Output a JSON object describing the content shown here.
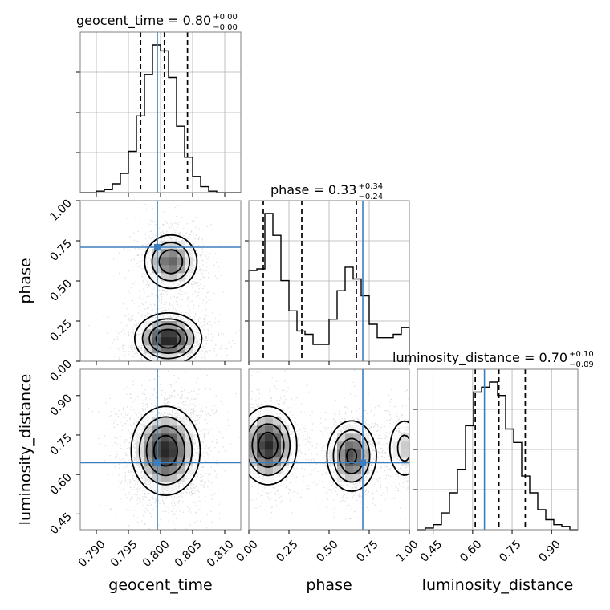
{
  "chart_data": {
    "type": "corner",
    "parameters": [
      {
        "name": "geocent_time",
        "axis_label": "geocent_time",
        "range": [
          0.7875,
          0.8125
        ],
        "ticks": [
          0.79,
          0.795,
          0.8,
          0.805,
          0.81
        ],
        "tick_labels": [
          "0.790",
          "0.795",
          "0.800",
          "0.805",
          "0.810"
        ],
        "truth": 0.7995
      },
      {
        "name": "phase",
        "axis_label": "phase",
        "range": [
          0.0,
          1.0
        ],
        "ticks": [
          0.0,
          0.25,
          0.5,
          0.75,
          1.0
        ],
        "tick_labels": [
          "0.00",
          "0.25",
          "0.50",
          "0.75",
          "1.00"
        ],
        "truth": 0.71
      },
      {
        "name": "luminosity_distance",
        "axis_label": "luminosity_distance",
        "range": [
          0.39,
          1.0
        ],
        "ticks": [
          0.45,
          0.6,
          0.75,
          0.9
        ],
        "tick_labels": [
          "0.45",
          "0.60",
          "0.75",
          "0.90"
        ],
        "truth": 0.645
      }
    ],
    "diagonal_titles": [
      {
        "label": "geocent_time = 0.80",
        "plus": "+0.00",
        "minus": "−0.00"
      },
      {
        "label": "phase = 0.33",
        "plus": "+0.34",
        "minus": "−0.24"
      },
      {
        "label": "luminosity_distance = 0.70",
        "plus": "+0.10",
        "minus": "−0.09"
      }
    ],
    "histograms": [
      {
        "param": "geocent_time",
        "quantile_lines": [
          0.7969,
          0.8006,
          0.8042
        ],
        "counts": [
          0,
          0,
          1,
          2,
          6,
          13,
          28,
          52,
          80,
          100,
          96,
          78,
          45,
          24,
          11,
          4,
          1,
          0,
          0,
          0
        ]
      },
      {
        "param": "phase",
        "quantile_lines": [
          0.09,
          0.33,
          0.67
        ],
        "counts": [
          54,
          55,
          88,
          75,
          48,
          30,
          18,
          16,
          10,
          10,
          25,
          42,
          56,
          49,
          39,
          22,
          14,
          14,
          16,
          20
        ]
      },
      {
        "param": "luminosity_distance",
        "quantile_lines": [
          0.61,
          0.7,
          0.8
        ],
        "counts": [
          0,
          1,
          3,
          10,
          22,
          36,
          62,
          82,
          85,
          88,
          80,
          60,
          52,
          32,
          22,
          12,
          6,
          3,
          2,
          0
        ]
      }
    ],
    "densities": [
      {
        "x": "geocent_time",
        "y": "phase",
        "modes": [
          {
            "x": 0.8016,
            "y": 0.62,
            "sx": 0.0022,
            "sy": 0.09,
            "w": 1.0
          },
          {
            "x": 0.8012,
            "y": 0.14,
            "sx": 0.0026,
            "sy": 0.08,
            "w": 1.35
          }
        ]
      },
      {
        "x": "geocent_time",
        "y": "luminosity_distance",
        "modes": [
          {
            "x": 0.8008,
            "y": 0.69,
            "sx": 0.0027,
            "sy": 0.085,
            "w": 1.0
          }
        ]
      },
      {
        "x": "phase",
        "y": "luminosity_distance",
        "modes": [
          {
            "x": 0.12,
            "y": 0.71,
            "sx": 0.09,
            "sy": 0.075,
            "w": 1.1
          },
          {
            "x": 0.64,
            "y": 0.67,
            "sx": 0.08,
            "sy": 0.07,
            "w": 0.95
          },
          {
            "x": 0.97,
            "y": 0.7,
            "sx": 0.06,
            "sy": 0.07,
            "w": 0.45
          }
        ]
      }
    ],
    "grid": true,
    "colors": {
      "truth": "#3b7ebf",
      "hist": "#000000",
      "quantile": "#000000",
      "grid": "#b0b0b0",
      "points": "#9a9a9a"
    }
  }
}
